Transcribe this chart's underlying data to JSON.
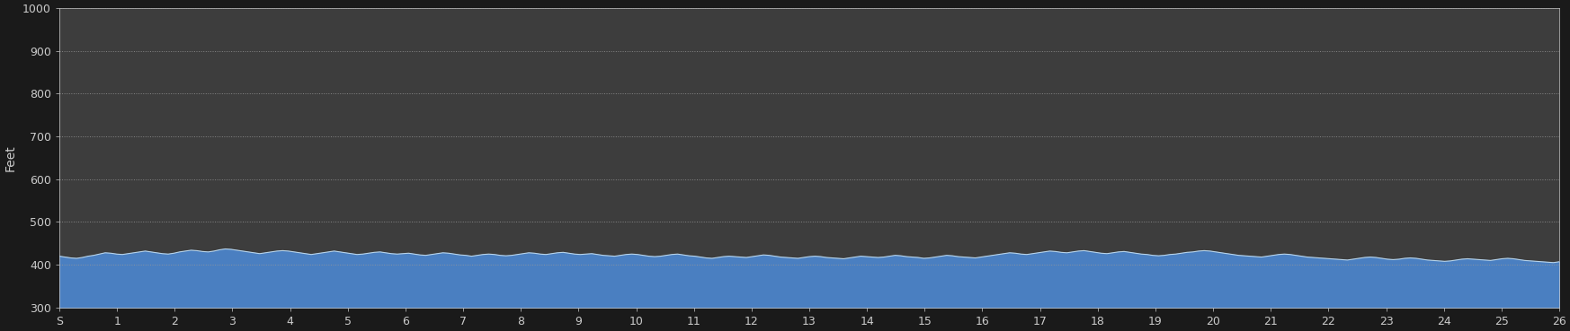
{
  "background_color": "#1a1a1a",
  "plot_bg_color": "#3d3d3d",
  "fill_color": "#4a7fc1",
  "line_color": "#b8d4ea",
  "grid_color": "#999999",
  "text_color": "#cccccc",
  "ylabel": "Feet",
  "ylim": [
    300,
    1000
  ],
  "yticks": [
    300,
    400,
    500,
    600,
    700,
    800,
    900,
    1000
  ],
  "xlim_start": 0,
  "xlim_end": 26,
  "xtick_labels": [
    "S",
    "1",
    "2",
    "3",
    "4",
    "5",
    "6",
    "7",
    "8",
    "9",
    "10",
    "11",
    "12",
    "13",
    "14",
    "15",
    "16",
    "17",
    "18",
    "19",
    "20",
    "21",
    "22",
    "23",
    "24",
    "25",
    "26"
  ],
  "xtick_positions": [
    0,
    1,
    2,
    3,
    4,
    5,
    6,
    7,
    8,
    9,
    10,
    11,
    12,
    13,
    14,
    15,
    16,
    17,
    18,
    19,
    20,
    21,
    22,
    23,
    24,
    25,
    26
  ],
  "elevation_y": [
    420,
    418,
    416,
    415,
    417,
    420,
    422,
    425,
    428,
    427,
    425,
    424,
    426,
    428,
    430,
    432,
    430,
    428,
    426,
    425,
    427,
    430,
    432,
    434,
    433,
    431,
    430,
    432,
    435,
    437,
    436,
    434,
    432,
    430,
    428,
    426,
    428,
    430,
    432,
    433,
    432,
    430,
    428,
    426,
    424,
    426,
    428,
    430,
    432,
    430,
    428,
    426,
    424,
    425,
    427,
    429,
    430,
    428,
    426,
    425,
    426,
    427,
    425,
    423,
    422,
    424,
    426,
    428,
    427,
    425,
    423,
    422,
    420,
    422,
    424,
    425,
    424,
    422,
    421,
    422,
    424,
    426,
    428,
    427,
    425,
    424,
    426,
    428,
    429,
    427,
    425,
    424,
    425,
    426,
    424,
    422,
    421,
    420,
    422,
    424,
    425,
    424,
    422,
    420,
    419,
    420,
    422,
    424,
    425,
    423,
    421,
    420,
    418,
    416,
    415,
    417,
    419,
    420,
    419,
    418,
    417,
    419,
    421,
    423,
    422,
    420,
    418,
    417,
    416,
    415,
    417,
    419,
    420,
    419,
    417,
    416,
    415,
    414,
    416,
    418,
    420,
    419,
    418,
    417,
    418,
    420,
    422,
    421,
    419,
    418,
    417,
    415,
    416,
    418,
    420,
    422,
    421,
    419,
    418,
    417,
    416,
    418,
    420,
    422,
    424,
    426,
    428,
    427,
    425,
    424,
    426,
    428,
    430,
    432,
    431,
    429,
    428,
    430,
    432,
    433,
    431,
    429,
    427,
    426,
    428,
    430,
    431,
    429,
    427,
    425,
    424,
    422,
    421,
    422,
    424,
    425,
    427,
    429,
    430,
    432,
    433,
    432,
    430,
    428,
    426,
    424,
    422,
    421,
    420,
    419,
    418,
    420,
    422,
    424,
    425,
    424,
    422,
    420,
    418,
    417,
    416,
    415,
    414,
    413,
    412,
    411,
    413,
    415,
    417,
    418,
    417,
    415,
    413,
    412,
    413,
    415,
    416,
    415,
    413,
    411,
    410,
    409,
    408,
    409,
    411,
    413,
    414,
    413,
    412,
    411,
    410,
    412,
    414,
    415,
    414,
    412,
    410,
    409,
    408,
    407,
    406,
    405,
    407
  ]
}
